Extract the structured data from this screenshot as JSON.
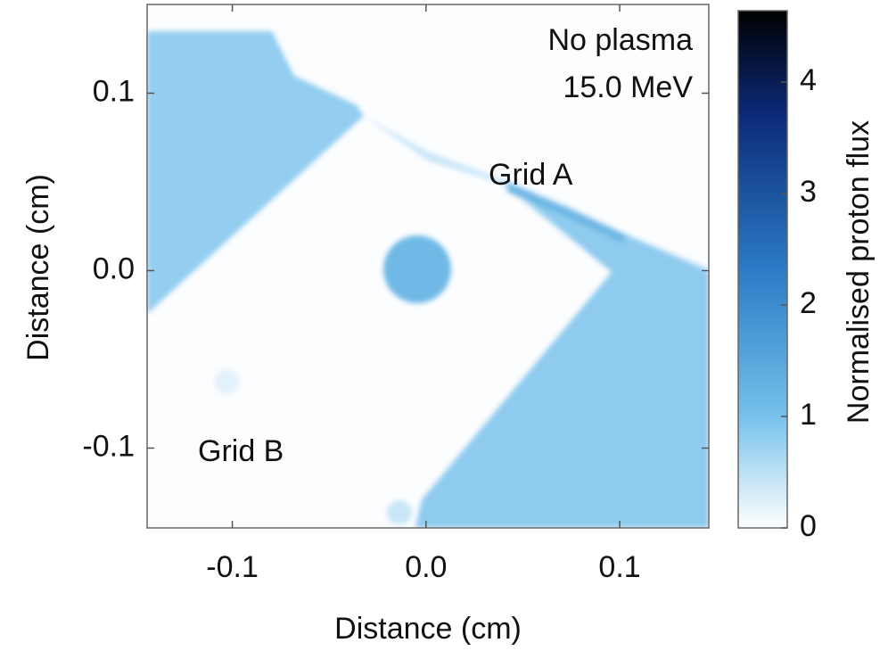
{
  "chart_data": {
    "type": "image",
    "xlabel": "Distance (cm)",
    "ylabel": "Distance (cm)",
    "xlim": [
      -0.144,
      0.146
    ],
    "xticks": [
      -0.1,
      {
        "value": 0,
        "label": "0.0"
      },
      0.1
    ],
    "ylim": [
      -0.145,
      0.15
    ],
    "yticks": [
      -0.1,
      {
        "value": 0,
        "label": "0.0"
      },
      0.1
    ],
    "colorbar": {
      "label": "Normalised proton flux",
      "clim": [
        0,
        4.64
      ],
      "ticks": [
        0,
        1,
        2,
        3,
        4
      ]
    },
    "annotations": [
      "No plasma",
      "15.0 MeV",
      "Grid A",
      "Grid B"
    ]
  }
}
